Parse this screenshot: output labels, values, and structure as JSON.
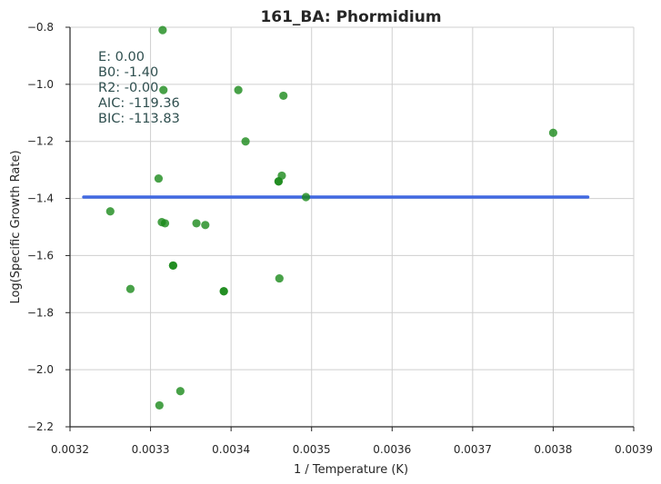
{
  "chart_data": {
    "type": "scatter",
    "title": "161_BA: Phormidium",
    "xlabel": "1 / Temperature (K)",
    "ylabel": "Log(Specific Growth Rate)",
    "xlim": [
      0.0032,
      0.0039
    ],
    "ylim": [
      -2.2,
      -0.8
    ],
    "x_ticks": [
      "0.0032",
      "0.0033",
      "0.0034",
      "0.0035",
      "0.0036",
      "0.0037",
      "0.0038",
      "0.0039"
    ],
    "y_ticks": [
      "−2.2",
      "−2.0",
      "−1.8",
      "−1.6",
      "−1.4",
      "−1.2",
      "−1.0",
      "−0.8"
    ],
    "x_tick_values": [
      0.0032,
      0.0033,
      0.0034,
      0.0035,
      0.0036,
      0.0037,
      0.0038,
      0.0039
    ],
    "y_tick_values": [
      -2.2,
      -2.0,
      -1.8,
      -1.6,
      -1.4,
      -1.2,
      -1.0,
      -0.8
    ],
    "grid": true,
    "colors": {
      "points": "#1a8a1a",
      "fit_line": "#4169e1",
      "annotation": "#2f4f4f"
    },
    "series": [
      {
        "points": [
          [
            0.003315,
            -0.81
          ],
          [
            0.003316,
            -1.02
          ],
          [
            0.003409,
            -1.02
          ],
          [
            0.003465,
            -1.04
          ],
          [
            0.003418,
            -1.2
          ],
          [
            0.0038,
            -1.17
          ],
          [
            0.00331,
            -1.33
          ],
          [
            0.003463,
            -1.32
          ],
          [
            0.003459,
            -1.34
          ],
          [
            0.003459,
            -1.34
          ],
          [
            0.003493,
            -1.395
          ],
          [
            0.00325,
            -1.445
          ],
          [
            0.003314,
            -1.483
          ],
          [
            0.003318,
            -1.487
          ],
          [
            0.003357,
            -1.487
          ],
          [
            0.003368,
            -1.493
          ],
          [
            0.003328,
            -1.635
          ],
          [
            0.003328,
            -1.635
          ],
          [
            0.00346,
            -1.68
          ],
          [
            0.003275,
            -1.717
          ],
          [
            0.003391,
            -1.725
          ],
          [
            0.003391,
            -1.725
          ],
          [
            0.003337,
            -2.075
          ],
          [
            0.003311,
            -2.125
          ]
        ]
      }
    ],
    "fit_line": {
      "x": [
        0.003217,
        0.003843
      ],
      "y": [
        -1.395,
        -1.395
      ]
    },
    "annotation": {
      "E": "E:  0.00",
      "B0": "B0:  -1.40",
      "R2": "R2:  -0.00",
      "AIC": "AIC: -119.36",
      "BIC": "BIC: -113.83"
    }
  }
}
